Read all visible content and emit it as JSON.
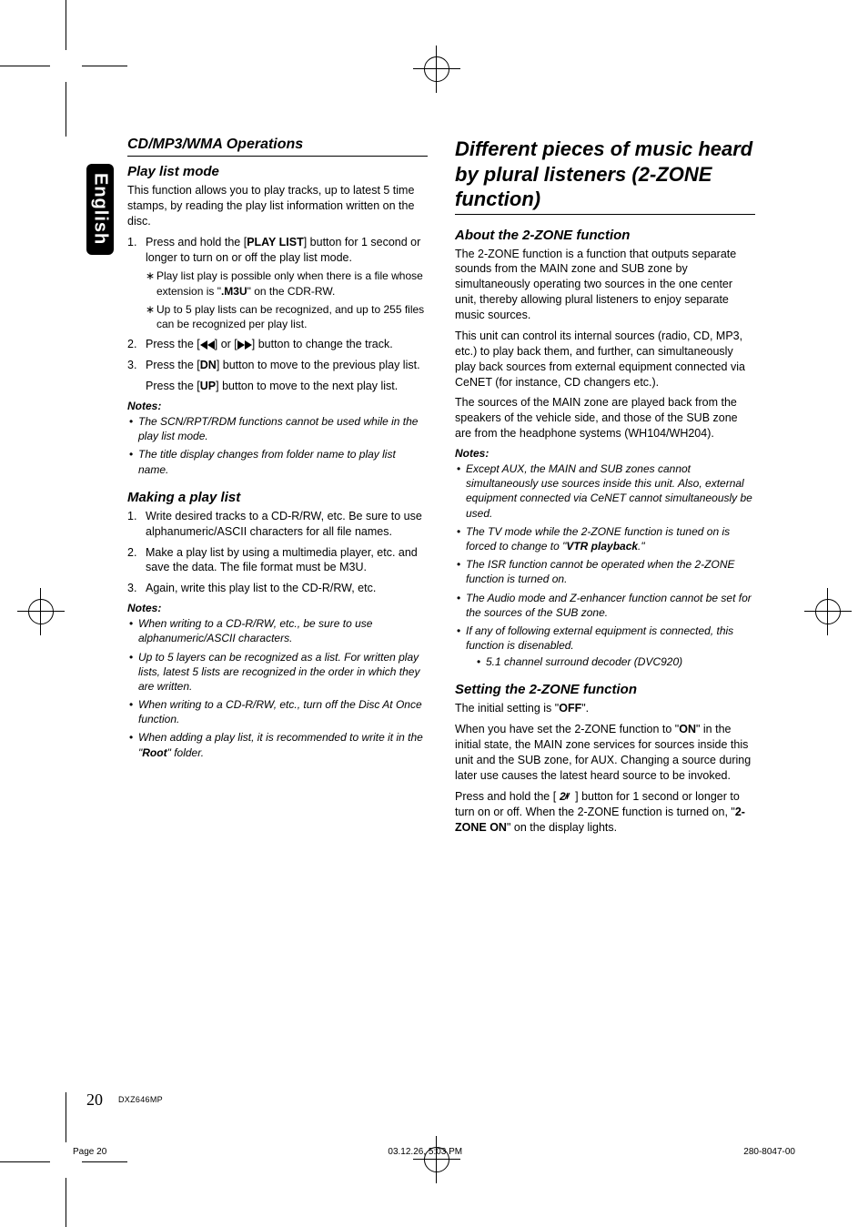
{
  "lang_tab": "English",
  "left": {
    "section_title": "CD/MP3/WMA Operations",
    "h_playlist": "Play list mode",
    "p_playlist_intro": "This function allows you to play tracks, up to latest 5 time stamps, by reading the play list information written on the disc.",
    "steps_playlist": [
      {
        "num": "1.",
        "pre": "Press and hold the [",
        "bold": "PLAY LIST",
        "post": "] button for 1 second or longer to turn on or off the play list mode."
      },
      {
        "num": "2.",
        "full": "Press the [__ICON_PREV__] or [__ICON_NEXT__] button to change the track."
      },
      {
        "num": "3.",
        "part_a_pre": "Press the [",
        "part_a_bold": "DN",
        "part_a_post": "] button to move to the previous play list.",
        "part_b_pre": "Press the [",
        "part_b_bold": "UP",
        "part_b_post": "] button to move to the next play list."
      }
    ],
    "star_notes": [
      {
        "pre": "Play list play is possible only when there is a file whose extension is \"",
        "bold": ".M3U",
        "post": "\" on the CDR-RW."
      },
      {
        "plain": "Up to 5 play lists can be recognized, and up to 255 files can be recognized per play list."
      }
    ],
    "notes_label": "Notes:",
    "notes_playlist": [
      "The SCN/RPT/RDM functions cannot be used while in the play list mode.",
      "The title display changes from folder name to play list name."
    ],
    "h_makelist": "Making a play list",
    "steps_makelist": [
      {
        "num": "1.",
        "text": "Write desired tracks to a CD-R/RW, etc. Be sure to use alphanumeric/ASCII characters for all file names."
      },
      {
        "num": "2.",
        "text": "Make a play list by using a multimedia player, etc. and save the data. The file format must be M3U."
      },
      {
        "num": "3.",
        "text": "Again, write this play list to the CD-R/RW, etc."
      }
    ],
    "notes_makelist": [
      {
        "plain": "When writing to a CD-R/RW, etc., be sure to use alphanumeric/ASCII characters."
      },
      {
        "plain": "Up to 5 layers can be recognized as a list. For written play lists, latest 5 lists are recognized in the order in which they are written."
      },
      {
        "plain": "When writing to a CD-R/RW, etc., turn off the Disc At Once function."
      },
      {
        "pre": "When adding a play list, it is recommended to write it in the \"",
        "bold": "Root",
        "post": "\" folder."
      }
    ]
  },
  "right": {
    "main_title": "Different pieces of music heard by plural listeners (2-ZONE function)",
    "h_about": "About the 2-ZONE function",
    "p_about_1": "The 2-ZONE function is a function that outputs separate sounds from the MAIN zone and SUB zone by simultaneously operating two sources in the one center unit, thereby allowing plural listeners to enjoy separate music sources.",
    "p_about_2": "This unit can control its internal sources (radio, CD, MP3, etc.) to play back them, and further, can simultaneously play back sources from external equipment connected via CeNET (for instance, CD changers etc.).",
    "p_about_3": "The sources of the MAIN zone are played back from the speakers of the vehicle side, and those of the SUB zone are from the headphone systems (WH104/WH204).",
    "notes_label": "Notes:",
    "notes_about": [
      {
        "plain": "Except AUX, the MAIN and SUB zones cannot simultaneously use sources inside this unit. Also, external equipment connected via CeNET cannot simultaneously be used."
      },
      {
        "pre": "The TV mode while the 2-ZONE function is tuned on is forced to change to \"",
        "bold": "VTR playback",
        "post": ".\""
      },
      {
        "plain": "The ISR function cannot be operated when the 2-ZONE function is turned on."
      },
      {
        "plain": "The Audio mode and Z-enhancer function cannot be set for the sources of the SUB zone."
      },
      {
        "plain": "If any of following external equipment is connected, this function is disenabled.",
        "sub": "5.1 channel surround decoder (DVC920)"
      }
    ],
    "h_setting": "Setting the 2-ZONE function",
    "p_setting_1_pre": "The initial setting is \"",
    "p_setting_1_bold": "OFF",
    "p_setting_1_post": "\".",
    "p_setting_2_pre": "When you have set the 2-ZONE function to \"",
    "p_setting_2_bold": "ON",
    "p_setting_2_post": "\" in the initial state, the MAIN zone services for sources inside this unit and the SUB zone, for AUX. Changing a source during later use causes the latest heard source to be invoked.",
    "p_setting_3_pre": "Press and hold the [ ",
    "p_setting_3_icon": "2zone",
    "p_setting_3_mid": " ] button for 1 second or longer to turn on or off. When the 2-ZONE function is turned on, \"",
    "p_setting_3_bold": "2-ZONE ON",
    "p_setting_3_post": "\" on the display lights."
  },
  "footer": {
    "page_number": "20",
    "model": "DXZ646MP",
    "foot_left": "Page 20",
    "foot_mid": "03.12.26, 5:03 PM",
    "foot_right": "280-8047-00"
  }
}
